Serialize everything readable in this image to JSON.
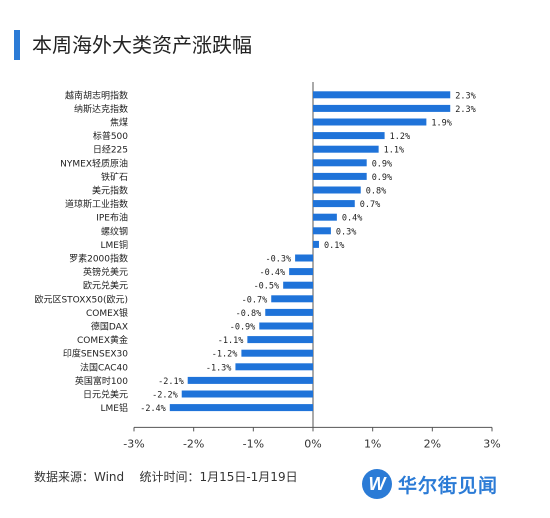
{
  "header": {
    "title": "本周海外大类资产涨跌幅"
  },
  "footer": {
    "source_label": "数据来源：Wind",
    "period_label": "统计时间：1月15日-1月19日"
  },
  "logo": {
    "text": "华尔街见闻",
    "icon": "wallstreetcn-logo-icon"
  },
  "colors": {
    "bar": "#1f73d9",
    "accent": "#2b7bd6"
  },
  "chart_data": {
    "type": "bar",
    "orientation": "horizontal",
    "categories": [
      "越南胡志明指数",
      "纳斯达克指数",
      "焦煤",
      "标普500",
      "日经225",
      "NYMEX轻质原油",
      "铁矿石",
      "美元指数",
      "道琼斯工业指数",
      "IPE布油",
      "螺纹钢",
      "LME铜",
      "罗素2000指数",
      "英镑兑美元",
      "欧元兑美元",
      "欧元区STOXX50(欧元)",
      "COMEX银",
      "德国DAX",
      "COMEX黄金",
      "印度SENSEX30",
      "法国CAC40",
      "英国富时100",
      "日元兑美元",
      "LME铝"
    ],
    "values": [
      2.3,
      2.3,
      1.9,
      1.2,
      1.1,
      0.9,
      0.9,
      0.8,
      0.7,
      0.4,
      0.3,
      0.1,
      -0.3,
      -0.4,
      -0.5,
      -0.7,
      -0.8,
      -0.9,
      -1.1,
      -1.2,
      -1.3,
      -2.1,
      -2.2,
      -2.4
    ],
    "value_labels": [
      "2.3%",
      "2.3%",
      "1.9%",
      "1.2%",
      "1.1%",
      "0.9%",
      "0.9%",
      "0.8%",
      "0.7%",
      "0.4%",
      "0.3%",
      "0.1%",
      "-0.3%",
      "-0.4%",
      "-0.5%",
      "-0.7%",
      "-0.8%",
      "-0.9%",
      "-1.1%",
      "-1.2%",
      "-1.3%",
      "-2.1%",
      "-2.2%",
      "-2.4%"
    ],
    "xlim": [
      -3,
      3
    ],
    "xticks": [
      -3,
      -2,
      -1,
      0,
      1,
      2,
      3
    ],
    "xtick_labels": [
      "-3%",
      "-2%",
      "-1%",
      "0%",
      "1%",
      "2%",
      "3%"
    ],
    "grid": false
  }
}
